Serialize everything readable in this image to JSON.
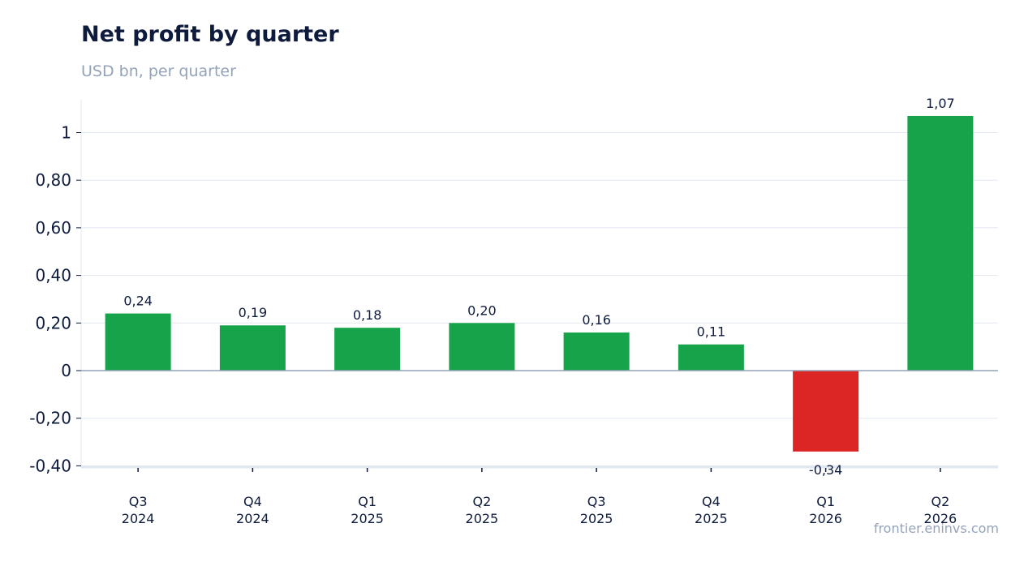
{
  "title": "Net profit by quarter",
  "subtitle": "USD bn, per quarter",
  "source": "frontier.eninvs.com",
  "chart_data": {
    "type": "bar",
    "title": "Net profit by quarter",
    "subtitle": "USD bn, per quarter",
    "xlabel": "",
    "ylabel": "",
    "categories": [
      [
        "Q3",
        "2024"
      ],
      [
        "Q4",
        "2024"
      ],
      [
        "Q1",
        "2025"
      ],
      [
        "Q2",
        "2025"
      ],
      [
        "Q3",
        "2025"
      ],
      [
        "Q4",
        "2025"
      ],
      [
        "Q1",
        "2026"
      ],
      [
        "Q2",
        "2026"
      ]
    ],
    "values": [
      0.24,
      0.19,
      0.18,
      0.2,
      0.16,
      0.11,
      -0.34,
      1.07
    ],
    "data_labels": [
      "0,24",
      "0,19",
      "0,18",
      "0,20",
      "0,16",
      "0,11",
      "-0,34",
      "1,07"
    ],
    "ylim": [
      -0.4,
      1.14
    ],
    "yticks": [
      {
        "value": 1,
        "label": "1"
      },
      {
        "value": 0.8,
        "label": "0,80"
      },
      {
        "value": 0.6,
        "label": "0,60"
      },
      {
        "value": 0.4,
        "label": "0,40"
      },
      {
        "value": 0.2,
        "label": "0,20"
      },
      {
        "value": 0,
        "label": "0"
      },
      {
        "value": -0.2,
        "label": "-0,20"
      },
      {
        "value": -0.4,
        "label": "-0,40"
      }
    ],
    "grid": true,
    "legend": "none",
    "colors": {
      "positive": "#16a34a",
      "negative": "#dc2626",
      "grid": "#e2e8f0",
      "zero_line": "#94a3b8"
    }
  }
}
